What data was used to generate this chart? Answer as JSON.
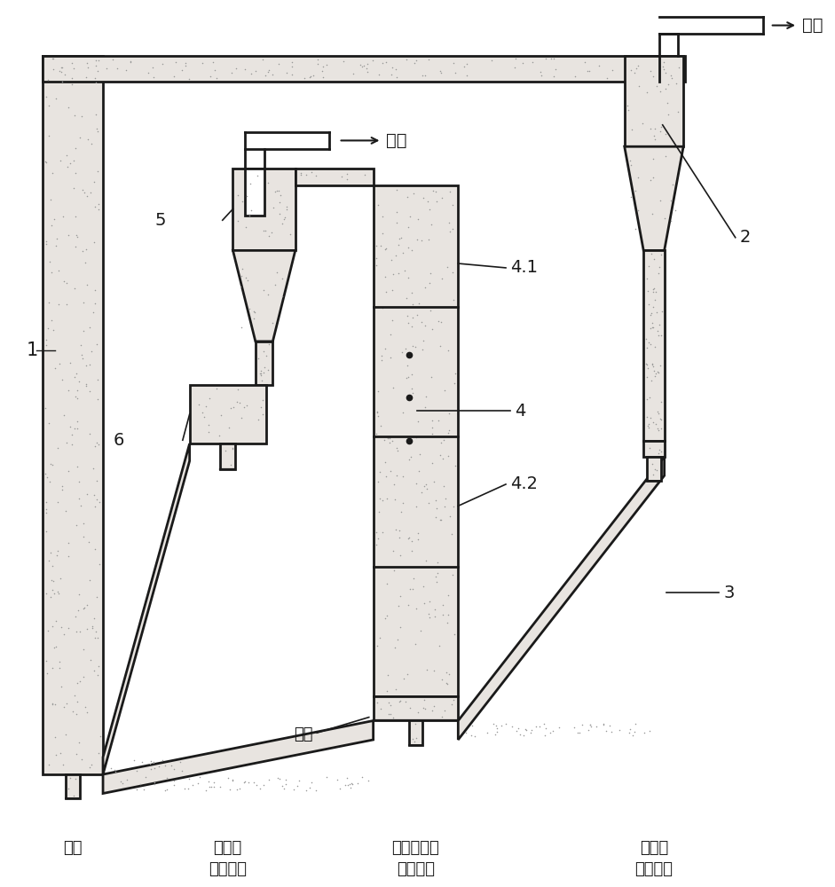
{
  "bg_color": "#ffffff",
  "wall_color": "#1a1a1a",
  "fill_color": "#e8e4e0",
  "dot_color": "#888888",
  "lw": 2.0,
  "labels": {
    "air_right": "空气",
    "flue_gas": "烟气",
    "n1": "1",
    "n2": "2",
    "n3": "3",
    "n4": "4",
    "n41": "4.1",
    "n42": "4.2",
    "n5": "5",
    "n6": "6",
    "air_bottom": "空气",
    "sep_gas": "隔离器\n流化气体",
    "fuel_gas": "燃料反应器\n流化气体",
    "ret_gas": "返料器\n流化气体",
    "fuel": "燃料"
  },
  "fs": 14,
  "lfs": 13
}
